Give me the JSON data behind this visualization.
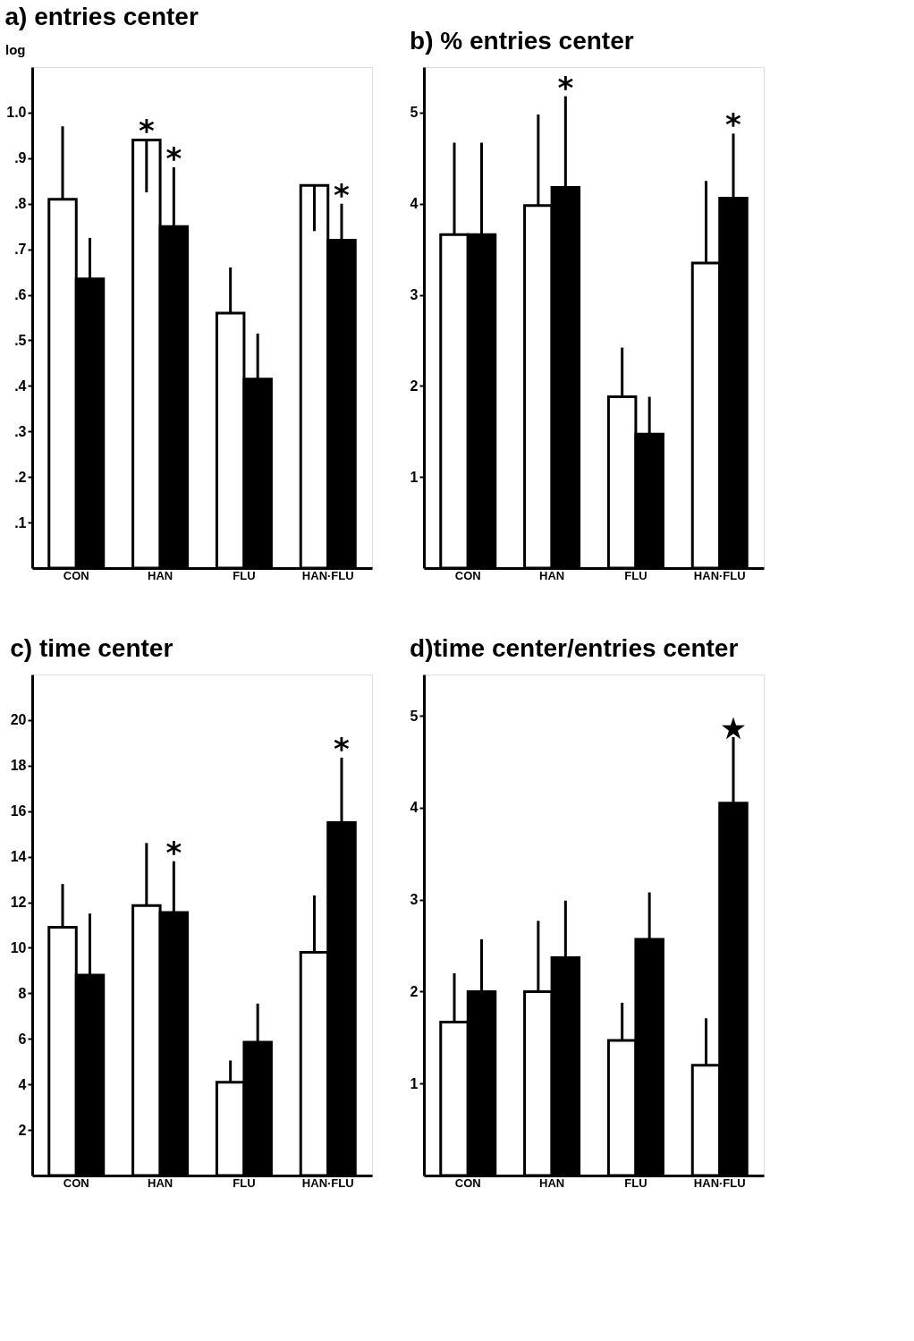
{
  "chart_data": [
    {
      "type": "bar",
      "title": "a)  entries  center",
      "ylabel": "log",
      "categories": [
        "CON",
        "HAN",
        "FLU",
        "HAN·FLU"
      ],
      "ylim": [
        0,
        1.1
      ],
      "yticks": [
        {
          "value": 0.1,
          "label": ".1"
        },
        {
          "value": 0.2,
          "label": ".2"
        },
        {
          "value": 0.3,
          "label": ".3"
        },
        {
          "value": 0.4,
          "label": ".4"
        },
        {
          "value": 0.5,
          "label": ".5"
        },
        {
          "value": 0.6,
          "label": ".6"
        },
        {
          "value": 0.7,
          "label": ".7"
        },
        {
          "value": 0.8,
          "label": ".8"
        },
        {
          "value": 0.9,
          "label": ".9"
        },
        {
          "value": 1.0,
          "label": "1.0"
        }
      ],
      "grid": false,
      "legend": false,
      "series": [
        {
          "color": "#ffffff",
          "values": [
            0.81,
            0.94,
            0.56,
            0.84
          ],
          "errors": [
            [
              0.81,
              0.97
            ],
            [
              0.825,
              0.94
            ],
            [
              0.56,
              0.66
            ],
            [
              0.74,
              0.84
            ]
          ]
        },
        {
          "color": "#000000",
          "values": [
            0.635,
            0.75,
            0.415,
            0.72
          ],
          "errors": [
            [
              0.635,
              0.725
            ],
            [
              0.75,
              0.88
            ],
            [
              0.415,
              0.515
            ],
            [
              0.72,
              0.8
            ]
          ]
        }
      ],
      "annotations": [
        {
          "text": "*",
          "x": "HAN",
          "y": 0.94
        },
        {
          "text": "*",
          "x": "HAN",
          "y": 0.75
        },
        {
          "text": "*",
          "x": "HAN·FLU",
          "y": 0.72
        }
      ]
    },
    {
      "type": "bar",
      "title": "b) % entries center",
      "categories": [
        "CON",
        "HAN",
        "FLU",
        "HAN·FLU"
      ],
      "ylim": [
        0,
        5.5
      ],
      "yticks": [
        1,
        2,
        3,
        4,
        5
      ],
      "grid": false,
      "legend": false,
      "series": [
        {
          "color": "#ffffff",
          "values": [
            3.66,
            3.98,
            1.88,
            3.35
          ],
          "errors": [
            [
              3.66,
              4.67
            ],
            [
              3.98,
              4.98
            ],
            [
              1.88,
              2.42
            ],
            [
              3.35,
              4.25
            ]
          ]
        },
        {
          "color": "#000000",
          "values": [
            3.66,
            4.18,
            1.47,
            4.06
          ],
          "errors": [
            [
              3.66,
              4.67
            ],
            [
              4.18,
              5.18
            ],
            [
              1.47,
              1.88
            ],
            [
              4.06,
              4.77
            ]
          ]
        }
      ],
      "annotations": [
        {
          "text": "*",
          "x": "HAN",
          "y": 4.18
        },
        {
          "text": "*",
          "x": "HAN·FLU",
          "y": 4.06
        }
      ]
    },
    {
      "type": "bar",
      "title": "c)  time  center",
      "categories": [
        "CON",
        "HAN",
        "FLU",
        "HAN·FLU"
      ],
      "ylim": [
        0,
        22
      ],
      "yticks": [
        2,
        4,
        6,
        8,
        10,
        12,
        14,
        16,
        18,
        20
      ],
      "grid": false,
      "legend": false,
      "series": [
        {
          "color": "#ffffff",
          "values": [
            10.9,
            11.85,
            4.1,
            9.8
          ],
          "errors": [
            [
              10.9,
              12.8
            ],
            [
              11.85,
              14.6
            ],
            [
              4.1,
              5.05
            ],
            [
              9.8,
              12.3
            ]
          ]
        },
        {
          "color": "#000000",
          "values": [
            8.8,
            11.55,
            5.85,
            15.5
          ],
          "errors": [
            [
              8.8,
              11.5
            ],
            [
              11.55,
              13.8
            ],
            [
              5.85,
              7.55
            ],
            [
              15.5,
              18.35
            ]
          ]
        }
      ],
      "annotations": [
        {
          "text": "*",
          "x": "HAN",
          "y": 11.55
        },
        {
          "text": "*",
          "x": "HAN·FLU",
          "y": 15.5
        }
      ]
    },
    {
      "type": "bar",
      "title": "d)time center/entries center",
      "categories": [
        "CON",
        "HAN",
        "FLU",
        "HAN·FLU"
      ],
      "ylim": [
        0,
        5.45
      ],
      "yticks": [
        1,
        2,
        3,
        4,
        5
      ],
      "grid": false,
      "legend": false,
      "series": [
        {
          "color": "#ffffff",
          "values": [
            1.67,
            2.0,
            1.47,
            1.2
          ],
          "errors": [
            [
              1.67,
              2.2
            ],
            [
              2.0,
              2.77
            ],
            [
              1.47,
              1.88
            ],
            [
              1.2,
              1.71
            ]
          ]
        },
        {
          "color": "#000000",
          "values": [
            2.0,
            2.37,
            2.57,
            4.05
          ],
          "errors": [
            [
              2.0,
              2.57
            ],
            [
              2.37,
              2.99
            ],
            [
              2.57,
              3.08
            ],
            [
              4.05,
              4.77
            ]
          ]
        }
      ],
      "annotations": [
        {
          "text": "★",
          "x": "HAN·FLU",
          "y": 4.05
        }
      ]
    }
  ]
}
